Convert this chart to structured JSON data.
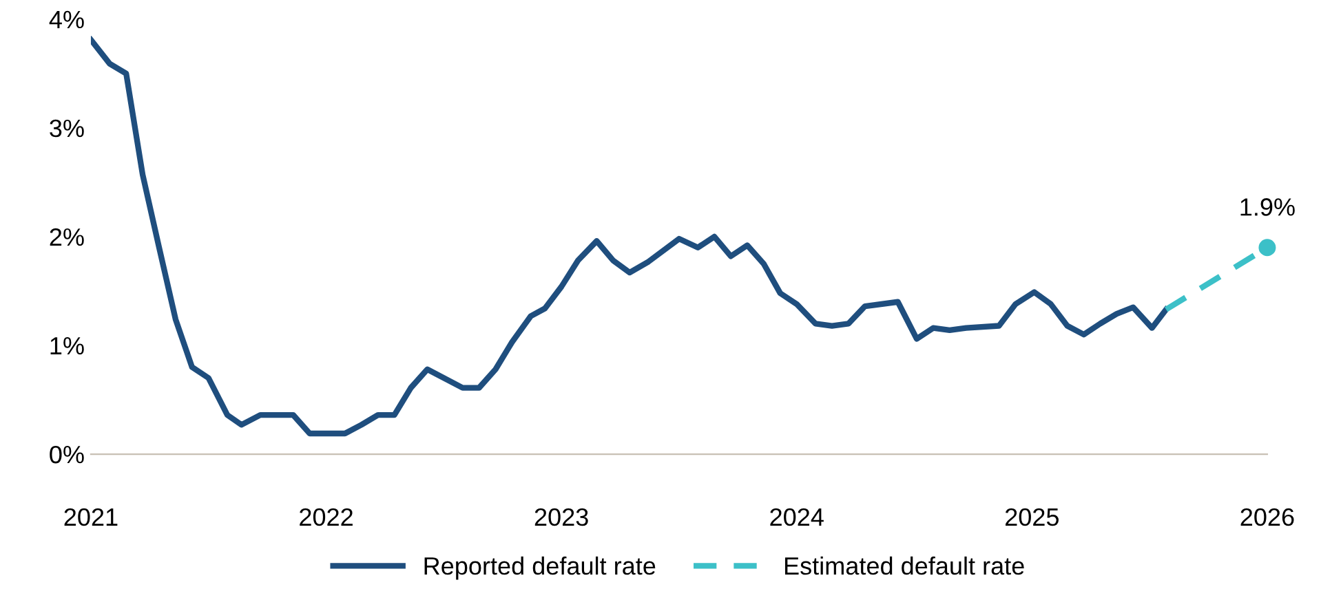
{
  "chart_data": {
    "type": "line",
    "xlim": [
      2021,
      2026
    ],
    "xticks": [
      2021,
      2022,
      2023,
      2024,
      2025,
      2026
    ],
    "ylim": [
      0,
      4
    ],
    "yticks": [
      {
        "value": 0,
        "label": "0%"
      },
      {
        "value": 1,
        "label": "1%"
      },
      {
        "value": 2,
        "label": "2%"
      },
      {
        "value": 3,
        "label": "3%"
      },
      {
        "value": 4,
        "label": "4%"
      }
    ],
    "grid": false,
    "legend": "bottom",
    "line_style": "solid",
    "series": [
      {
        "name": "Reported default rate",
        "color": "#1f4e7e",
        "x": [
          2021.0,
          2021.08,
          2021.15,
          2021.22,
          2021.29,
          2021.36,
          2021.43,
          2021.5,
          2021.58,
          2021.64,
          2021.72,
          2021.86,
          2021.93,
          2022.08,
          2022.15,
          2022.22,
          2022.29,
          2022.36,
          2022.43,
          2022.58,
          2022.65,
          2022.72,
          2022.79,
          2022.87,
          2022.93,
          2023.0,
          2023.07,
          2023.15,
          2023.22,
          2023.29,
          2023.37,
          2023.5,
          2023.58,
          2023.65,
          2023.72,
          2023.79,
          2023.86,
          2023.93,
          2024.0,
          2024.08,
          2024.15,
          2024.22,
          2024.29,
          2024.43,
          2024.51,
          2024.58,
          2024.65,
          2024.72,
          2024.86,
          2024.93,
          2025.01,
          2025.08,
          2025.15,
          2025.22,
          2025.29,
          2025.36,
          2025.43,
          2025.51,
          2025.57
        ],
        "values": [
          3.81,
          3.59,
          3.5,
          2.57,
          1.9,
          1.24,
          0.8,
          0.7,
          0.36,
          0.27,
          0.36,
          0.36,
          0.19,
          0.19,
          0.27,
          0.36,
          0.36,
          0.61,
          0.78,
          0.61,
          0.61,
          0.78,
          1.03,
          1.27,
          1.34,
          1.54,
          1.78,
          1.96,
          1.78,
          1.67,
          1.77,
          1.98,
          1.9,
          2.0,
          1.82,
          1.92,
          1.75,
          1.48,
          1.38,
          1.2,
          1.18,
          1.2,
          1.36,
          1.4,
          1.06,
          1.16,
          1.14,
          1.16,
          1.18,
          1.38,
          1.49,
          1.38,
          1.18,
          1.1,
          1.2,
          1.29,
          1.35,
          1.16,
          1.33
        ]
      },
      {
        "name": "Estimated default rate",
        "color": "#3cc0c8",
        "line_style": "dashed",
        "x": [
          2025.57,
          2026.0
        ],
        "values": [
          1.33,
          1.9
        ]
      }
    ],
    "annotations": [
      {
        "text": "1.9%",
        "x": 2026.0,
        "y": 1.9
      }
    ]
  }
}
